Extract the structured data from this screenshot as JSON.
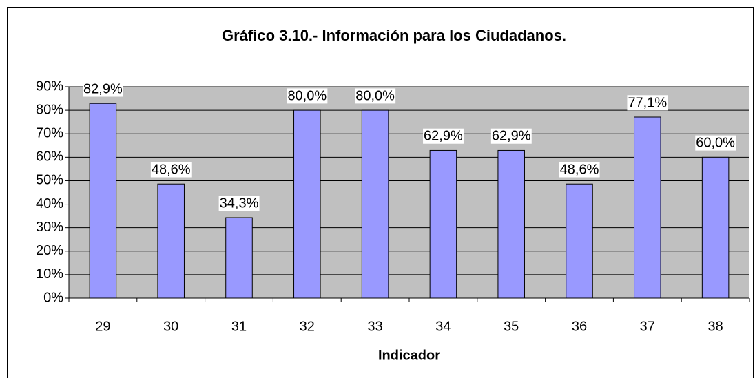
{
  "chart_data": {
    "type": "bar",
    "title": "Gráfico 3.10.- Información para los Ciudadanos.",
    "x_label": "Indicador",
    "categories": [
      "29",
      "30",
      "31",
      "32",
      "33",
      "34",
      "35",
      "36",
      "37",
      "38"
    ],
    "values": [
      82.9,
      48.6,
      34.3,
      80.0,
      80.0,
      62.9,
      62.9,
      48.6,
      77.1,
      60.0
    ],
    "value_labels": [
      "82,9%",
      "48,6%",
      "34,3%",
      "80,0%",
      "80,0%",
      "62,9%",
      "62,9%",
      "48,6%",
      "77,1%",
      "60,0%"
    ],
    "color": "#9999ff",
    "ylim": [
      0,
      90
    ],
    "yticks": [
      {
        "value": 0,
        "label": "0%"
      },
      {
        "value": 10,
        "label": "10%"
      },
      {
        "value": 20,
        "label": "20%"
      },
      {
        "value": 30,
        "label": "30%"
      },
      {
        "value": 40,
        "label": "40%"
      },
      {
        "value": 50,
        "label": "50%"
      },
      {
        "value": 60,
        "label": "60%"
      },
      {
        "value": 70,
        "label": "70%"
      },
      {
        "value": 80,
        "label": "80%"
      },
      {
        "value": 90,
        "label": "90%"
      }
    ],
    "grid": true
  }
}
